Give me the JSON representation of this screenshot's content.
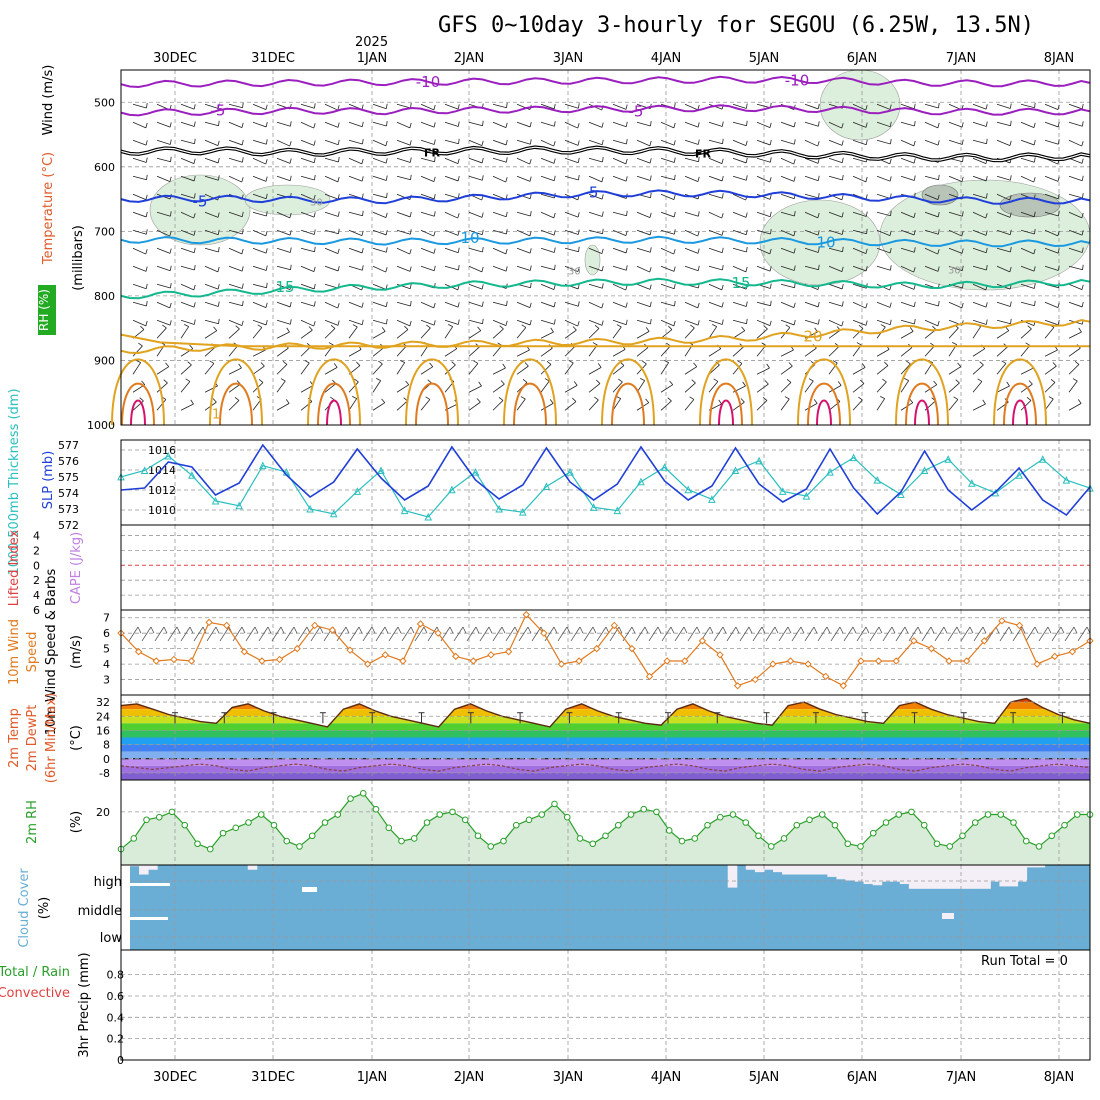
{
  "title": "GFS 0~10day 3-hourly for SEGOU (6.25W, 13.5N)",
  "run_total": "Run Total = 0",
  "year_label": "2025",
  "colors": {
    "purple": "#9b1fbf",
    "black": "#000000",
    "blue": "#1f3fd8",
    "lightblue": "#1a98e0",
    "teal": "#14b88e",
    "gold": "#e0a21f",
    "orange": "#e07a1f",
    "magenta": "#d6126e",
    "cyan": "#2bbfbf",
    "green": "#2aa02a",
    "cloud": "#6aaed6",
    "rh_fill": "#d9ecd9"
  },
  "chart_data": [
    {
      "panel": "upper-air",
      "type": "line",
      "x_dates": [
        "30DEC",
        "31DEC",
        "1JAN",
        "2JAN",
        "3JAN",
        "4JAN",
        "5JAN",
        "6JAN",
        "7JAN",
        "8JAN"
      ],
      "ylabel_parts": [
        "RH (%)",
        "Temperature (°C)",
        "Wind (m/s)"
      ],
      "yunit": "(millibars)",
      "yticks": [
        500,
        600,
        700,
        800,
        900,
        1000
      ],
      "ylim": [
        450,
        1000
      ],
      "isotherms": [
        {
          "name": "-10",
          "color": "purple",
          "label_x": [
            428,
            797
          ],
          "values": [
            472,
            471,
            470,
            469,
            468,
            467,
            466,
            465,
            466,
            470,
            471,
            470
          ]
        },
        {
          "name": "-5",
          "color": "purple",
          "label_x": [
            218,
            636
          ],
          "values": [
            516,
            515,
            513,
            514,
            512,
            511,
            510,
            509,
            511,
            514,
            515,
            514
          ]
        },
        {
          "name": "FR",
          "color": "black",
          "label_x": [
            432,
            703
          ],
          "values": [
            576,
            575,
            578,
            576,
            575,
            574,
            575,
            578,
            582,
            585,
            586,
            583
          ]
        },
        {
          "name": "-5",
          "color": "blue",
          "label_x": [
            200,
            591
          ],
          "values": [
            650,
            649,
            651,
            652,
            648,
            643,
            641,
            642,
            646,
            650,
            653,
            652
          ]
        },
        {
          "name": "10",
          "color": "lightblue",
          "label_x": [
            470,
            826
          ],
          "values": [
            713,
            714,
            715,
            716,
            715,
            714,
            713,
            714,
            716,
            718,
            719,
            718
          ]
        },
        {
          "name": "15",
          "color": "teal",
          "label_x": [
            285,
            741
          ],
          "values": [
            800,
            796,
            790,
            786,
            782,
            780,
            778,
            779,
            781,
            784,
            782,
            778
          ]
        },
        {
          "name": "20",
          "color": "gold",
          "label_x": [
            813
          ],
          "values": [
            885,
            880,
            878,
            876,
            874,
            872,
            870,
            866,
            858,
            850,
            845,
            840
          ]
        }
      ],
      "contour_labels": [
        "30",
        "30",
        "30",
        "1"
      ]
    },
    {
      "panel": "thickness-slp",
      "type": "line",
      "ylabel_left": "1000-500mb Thickness (dm)",
      "ylabel_right": "SLP (mb)",
      "thickness_ticks": [
        572,
        573,
        574,
        575,
        576,
        577
      ],
      "slp_ticks": [
        1010,
        1012,
        1014,
        1016
      ],
      "series": [
        {
          "name": "thickness",
          "color": "cyan",
          "values": [
            575.0,
            575.4,
            576.3,
            575.1,
            573.5,
            573.2,
            575.7,
            575.3,
            573.0,
            572.7,
            574.1,
            575.4,
            572.9,
            572.5,
            574.2,
            575.3,
            573.0,
            572.8,
            574.4,
            575.3,
            573.1,
            572.9,
            574.7,
            575.6,
            574.2,
            573.6,
            575.4,
            576.0,
            574.1,
            573.8,
            575.3,
            576.2,
            574.8,
            573.9,
            575.4,
            576.1,
            574.6,
            574.0,
            575.1,
            576.1,
            574.8,
            574.3
          ]
        },
        {
          "name": "slp",
          "color": "blue",
          "values": [
            1012.0,
            1012.2,
            1014.8,
            1014.3,
            1011.5,
            1012.7,
            1016.5,
            1013.5,
            1011.3,
            1012.8,
            1016.1,
            1013.2,
            1011.0,
            1012.4,
            1016.3,
            1013.0,
            1011.1,
            1012.5,
            1016.2,
            1012.8,
            1011.0,
            1012.6,
            1016.3,
            1012.9,
            1011.0,
            1012.4,
            1016.2,
            1012.6,
            1010.8,
            1012.1,
            1016.1,
            1012.2,
            1009.6,
            1011.8,
            1015.9,
            1012.0,
            1010.0,
            1011.8,
            1014.2,
            1011.0,
            1009.5,
            1012.3
          ]
        }
      ]
    },
    {
      "panel": "lifted-index",
      "type": "line",
      "ylabel_left": "Lifted Index",
      "ylabel_right": "CAPE (J/kg)",
      "yticks": [
        -4,
        -2,
        0,
        2,
        4,
        6
      ],
      "series": [
        {
          "name": "zero line",
          "color": "red",
          "values": [
            0
          ]
        }
      ]
    },
    {
      "panel": "wind",
      "type": "line",
      "ylabel": "10m Wind Speed & Barbs",
      "yunit": "(m/s)",
      "yticks": [
        3,
        4,
        5,
        6,
        7
      ],
      "ylim": [
        2,
        7.5
      ],
      "series": [
        {
          "name": "10m wind",
          "color": "orange",
          "values": [
            6.0,
            4.8,
            4.2,
            4.3,
            4.2,
            6.7,
            6.5,
            4.8,
            4.2,
            4.3,
            5.0,
            6.5,
            6.2,
            4.9,
            4.0,
            4.6,
            4.2,
            6.6,
            6.0,
            4.5,
            4.2,
            4.6,
            4.8,
            7.2,
            6.0,
            4.0,
            4.2,
            5.0,
            6.5,
            5.0,
            3.2,
            4.2,
            4.2,
            5.5,
            4.6,
            2.6,
            3.0,
            4.0,
            4.2,
            4.0,
            3.2,
            2.6,
            4.2,
            4.2,
            4.2,
            5.5,
            5.0,
            4.2,
            4.2,
            5.5,
            6.8,
            6.5,
            4.0,
            4.5,
            4.8,
            5.5
          ]
        }
      ]
    },
    {
      "panel": "temperature",
      "type": "area",
      "ylabel_parts": [
        "2m Temp",
        "2m DewPt",
        "(6hr Min/Max)"
      ],
      "yunit": "(°C)",
      "yticks": [
        32,
        24,
        16,
        8,
        0,
        -8
      ],
      "series": [
        {
          "name": "temp",
          "values": [
            30,
            31,
            28,
            25,
            23,
            21,
            20,
            29,
            31,
            27,
            24,
            22,
            20,
            18,
            28,
            31,
            27,
            24,
            22,
            20,
            18,
            28,
            31,
            27,
            24,
            22,
            20,
            18,
            28,
            31,
            27,
            24,
            22,
            20,
            19,
            28,
            31,
            27,
            24,
            22,
            20,
            19,
            30,
            32,
            28,
            25,
            23,
            21,
            20,
            30,
            32,
            28,
            25,
            23,
            21,
            20,
            32,
            34,
            29,
            25,
            22,
            20
          ]
        },
        {
          "name": "dewpt",
          "values": [
            -4,
            -5,
            -6,
            -5,
            -4,
            -3,
            -4,
            -6,
            -7,
            -5,
            -4,
            -3,
            -4,
            -6,
            -7,
            -5,
            -4,
            -3,
            -4,
            -6,
            -7,
            -5,
            -4,
            -3,
            -4,
            -6,
            -7,
            -5,
            -4,
            -3,
            -4,
            -6,
            -7,
            -5,
            -4,
            -3,
            -4,
            -6,
            -7,
            -5,
            -4,
            -3,
            -4,
            -6,
            -7,
            -5,
            -4,
            -3,
            -4,
            -6,
            -7,
            -5,
            -4,
            -3,
            -4,
            -6,
            -7,
            -5,
            -4,
            -3,
            -4,
            -5
          ]
        }
      ]
    },
    {
      "panel": "rh",
      "type": "line",
      "ylabel": "2m RH",
      "yunit": "(%)",
      "yticks": [
        20
      ],
      "series": [
        {
          "name": "2m RH",
          "color": "green",
          "values": [
            6,
            10,
            17,
            18,
            20,
            15,
            8,
            6,
            12,
            14,
            16,
            19,
            15,
            9,
            7,
            11,
            16,
            19,
            25,
            27,
            21,
            14,
            9,
            10,
            16,
            19,
            20,
            17,
            11,
            7,
            9,
            15,
            17,
            19,
            23,
            18,
            10,
            8,
            11,
            15,
            19,
            21,
            20,
            13,
            9,
            10,
            15,
            18,
            19,
            16,
            11,
            7,
            10,
            15,
            17,
            19,
            15,
            8,
            7,
            12,
            16,
            19,
            20,
            15,
            8,
            7,
            11,
            16,
            19,
            19,
            16,
            9,
            7,
            11,
            15,
            19,
            19
          ]
        }
      ]
    },
    {
      "panel": "cloud",
      "type": "area",
      "ylabel": "Cloud Cover",
      "yunit": "(%)",
      "levels": [
        "high",
        "middle",
        "low"
      ],
      "high_cover": [
        0.95,
        0.6,
        0.8,
        1,
        1,
        1,
        1,
        1,
        1,
        1,
        1,
        1,
        1,
        0.8,
        1,
        1,
        1,
        1,
        1,
        1,
        1,
        1,
        1,
        1,
        1,
        1,
        1,
        1,
        1,
        1,
        1,
        1,
        1,
        1,
        1,
        1,
        1,
        1,
        1,
        1,
        1,
        1,
        1,
        1,
        1,
        1,
        1,
        1,
        1,
        1,
        1,
        1,
        1,
        1,
        1,
        1,
        1,
        1,
        1,
        1,
        1,
        1,
        1,
        1,
        1,
        1,
        0.05,
        1,
        0.8,
        0.7,
        0.8,
        0.7,
        0.6,
        0.6,
        0.6,
        0.6,
        0.6,
        0.5,
        0.4,
        0.35,
        0.3,
        0.2,
        0.15,
        0.3,
        0.3,
        0.2,
        0,
        0,
        0,
        0,
        0,
        0,
        0,
        0,
        0,
        0.3,
        0.1,
        0.1,
        0.3,
        0.9,
        0.9,
        1,
        1,
        1,
        1,
        1
      ]
    },
    {
      "panel": "precip",
      "type": "bar",
      "ylabel_left": "Total / Rain",
      "ylabel_left2": "Convective",
      "ylabel": "3hr Precip (mm)",
      "yticks": [
        0,
        0.2,
        0.4,
        0.6,
        0.8
      ],
      "ylim": [
        0,
        1
      ],
      "values": []
    }
  ]
}
